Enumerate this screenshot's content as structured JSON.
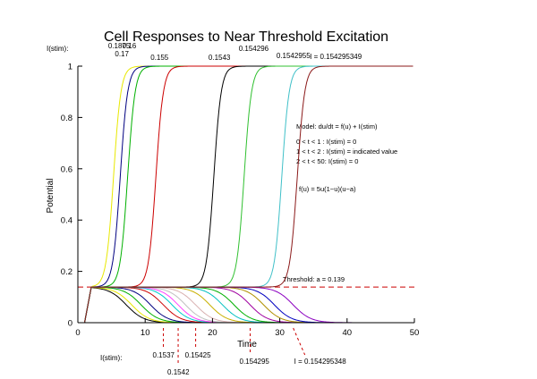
{
  "chart_data": {
    "type": "line",
    "title": "Cell Responses to Near Threshold Excitation",
    "xlabel": "Time",
    "ylabel": "Potential",
    "xlim": [
      0,
      50
    ],
    "ylim": [
      0,
      1
    ],
    "x_ticks": [
      "0",
      "10",
      "20",
      "30",
      "40",
      "50"
    ],
    "y_ticks": [
      "0",
      "0.2",
      "0.4",
      "0.6",
      "0.8",
      "1"
    ],
    "grid": false,
    "threshold": {
      "value": 0.139,
      "label": "Threshold: a = 0.139",
      "color": "#cc0000"
    },
    "model_text": [
      "Model:  du/dt = f(u) + I(stim)",
      "0 < t < 1 :  I(stim) = 0",
      "1 < t < 2 :  I(stim) = indicated value",
      "2 < t < 50:  I(stim) = 0",
      "f(u) = 5u(1−u)(u−a)"
    ],
    "top_caption": "I(stim):",
    "bottom_caption": "I(stim):",
    "excited_series": [
      {
        "label": "0.1875",
        "t_rise": 5.3,
        "color": "#e8e800"
      },
      {
        "label": "0.17",
        "t_rise": 6.3,
        "color": "#000080"
      },
      {
        "label": "0.16",
        "t_rise": 7.4,
        "color": "#00b000"
      },
      {
        "label": "0.155",
        "t_rise": 11.6,
        "color": "#cc0000"
      },
      {
        "label": "0.1543",
        "t_rise": 20.2,
        "color": "#000000"
      },
      {
        "label": "0.154296",
        "t_rise": 24.7,
        "color": "#30c030"
      },
      {
        "label": "0.1542955",
        "t_rise": 30.3,
        "color": "#40c0c8"
      },
      {
        "label": "I = 0.154295349",
        "t_rise": 32.6,
        "color": "#8b1a1a"
      }
    ],
    "decay_series": [
      {
        "label": "",
        "t_fall": 7.2,
        "color": "#000000"
      },
      {
        "label": "",
        "t_fall": 8.0,
        "color": "#e8e800"
      },
      {
        "label": "",
        "t_fall": 9.4,
        "color": "#00b000"
      },
      {
        "label": "",
        "t_fall": 10.8,
        "color": "#000080"
      },
      {
        "label": "0.1537",
        "t_fall": 12.7,
        "color": "#cc0000"
      },
      {
        "label": "",
        "t_fall": 14.0,
        "color": "#00cccc"
      },
      {
        "label": "0.1542",
        "t_fall": 14.9,
        "color": "#ff40ff"
      },
      {
        "label": "",
        "t_fall": 16.0,
        "color": "#c0c0c0"
      },
      {
        "label": "0.15425",
        "t_fall": 17.5,
        "color": "#d8b0b0"
      },
      {
        "label": "",
        "t_fall": 19.6,
        "color": "#c8b000"
      },
      {
        "label": "",
        "t_fall": 21.5,
        "color": "#00c0c0"
      },
      {
        "label": "",
        "t_fall": 23.2,
        "color": "#00b000"
      },
      {
        "label": "0.154295",
        "t_fall": 25.6,
        "color": "#a000a0"
      },
      {
        "label": "",
        "t_fall": 27.6,
        "color": "#b09000"
      },
      {
        "label": "",
        "t_fall": 29.2,
        "color": "#0000c0"
      },
      {
        "label": "I = 0.154295348",
        "t_fall": 32.0,
        "color": "#8b00c0"
      }
    ]
  }
}
